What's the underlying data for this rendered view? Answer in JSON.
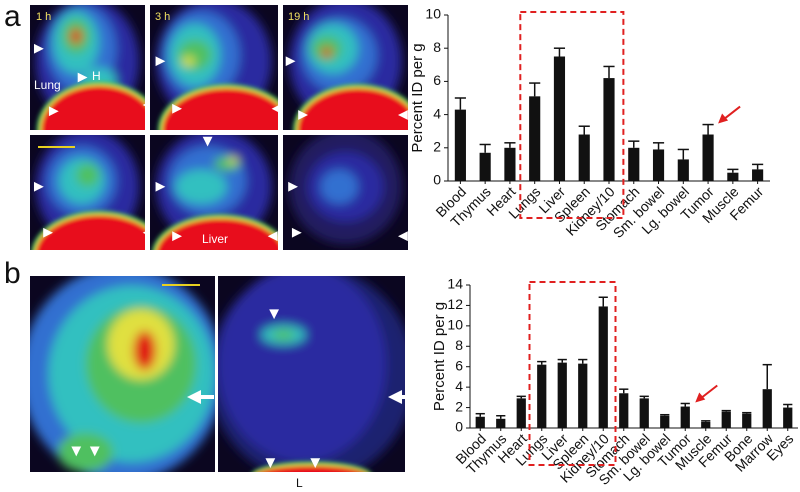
{
  "chart_data": [
    {
      "type": "bar",
      "ylabel": "Percent ID per g",
      "categories": [
        "Blood",
        "Thymus",
        "Heart",
        "Lungs",
        "Liver",
        "Spleen",
        "Kidney/10",
        "Stomach",
        "Sm. bowel",
        "Lg. bowel",
        "Tumor",
        "Muscle",
        "Femur"
      ],
      "values": [
        4.3,
        1.7,
        2.0,
        5.1,
        7.5,
        2.8,
        6.2,
        2.0,
        1.9,
        1.3,
        2.8,
        0.5,
        0.7
      ],
      "errors": [
        0.7,
        0.5,
        0.3,
        0.8,
        0.5,
        0.5,
        0.7,
        0.4,
        0.4,
        0.6,
        0.6,
        0.2,
        0.3
      ],
      "color": "#111111",
      "ylim": [
        0,
        10
      ],
      "yticks": [
        0,
        2,
        4,
        6,
        8,
        10
      ],
      "grid": false
    },
    {
      "type": "bar",
      "ylabel": "Percent ID per g",
      "categories": [
        "Blood",
        "Thymus",
        "Heart",
        "Lungs",
        "Liver",
        "Spleen",
        "Kidney/10",
        "Stomach",
        "Sm. bowel",
        "Lg. bowel",
        "Tumor",
        "Muscle",
        "Femur",
        "Bone",
        "Marrow",
        "Eyes"
      ],
      "values": [
        1.1,
        0.9,
        2.9,
        6.2,
        6.4,
        6.3,
        11.9,
        3.4,
        2.9,
        1.2,
        2.1,
        0.6,
        1.6,
        1.4,
        3.8,
        2.0
      ],
      "errors": [
        0.3,
        0.3,
        0.2,
        0.3,
        0.3,
        0.4,
        0.9,
        0.4,
        0.2,
        0.1,
        0.3,
        0.1,
        0.1,
        0.1,
        2.4,
        0.3
      ],
      "color": "#111111",
      "ylim": [
        0,
        14
      ],
      "yticks": [
        0,
        2,
        4,
        6,
        8,
        10,
        12,
        14
      ],
      "grid": false
    }
  ],
  "panel_a": {
    "label": "a",
    "time_labels": [
      "1 h",
      "3 h",
      "19 h"
    ],
    "annotations": [
      "Lung",
      "H",
      "Liver"
    ]
  },
  "panel_b": {
    "label": "b",
    "annotations": [
      "L"
    ]
  }
}
